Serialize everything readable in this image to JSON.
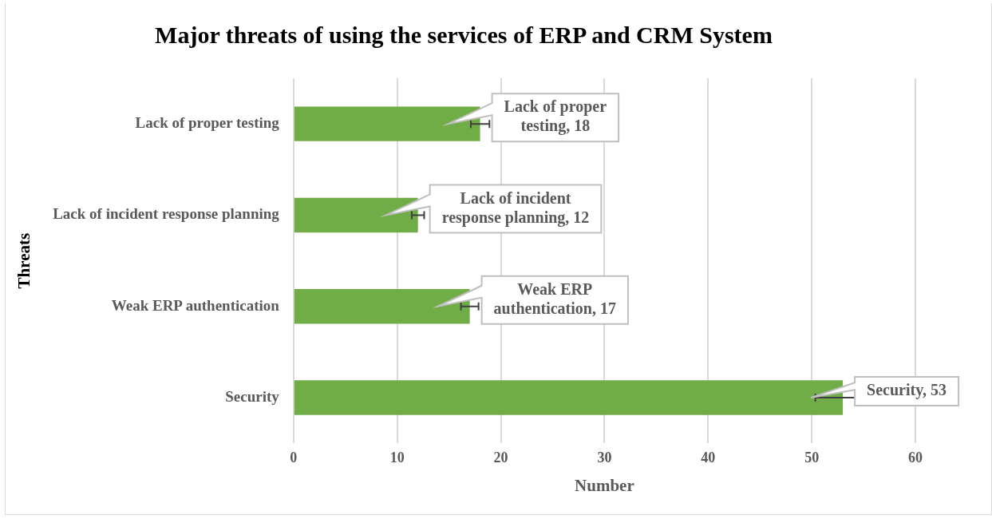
{
  "chart_data": {
    "type": "bar",
    "orientation": "horizontal",
    "title": "Major threats of using the services of ERP and CRM System",
    "xlabel": "Number",
    "ylabel": "Threats",
    "categories": [
      "Lack of proper testing",
      "Lack of incident response planning",
      "Weak ERP authentication",
      "Security"
    ],
    "values": [
      18,
      12,
      17,
      53
    ],
    "errors": [
      0.9,
      0.6,
      0.85,
      2.65
    ],
    "value_labels": [
      "Lack of proper testing, 18",
      "Lack of incident response planning, 12",
      "Weak ERP authentication, 17",
      "Security, 53"
    ],
    "color": "#70ad47",
    "xlim": [
      0,
      60
    ],
    "xticks": [
      0,
      10,
      20,
      30,
      40,
      50,
      60
    ],
    "grid": "x",
    "legend": false
  }
}
